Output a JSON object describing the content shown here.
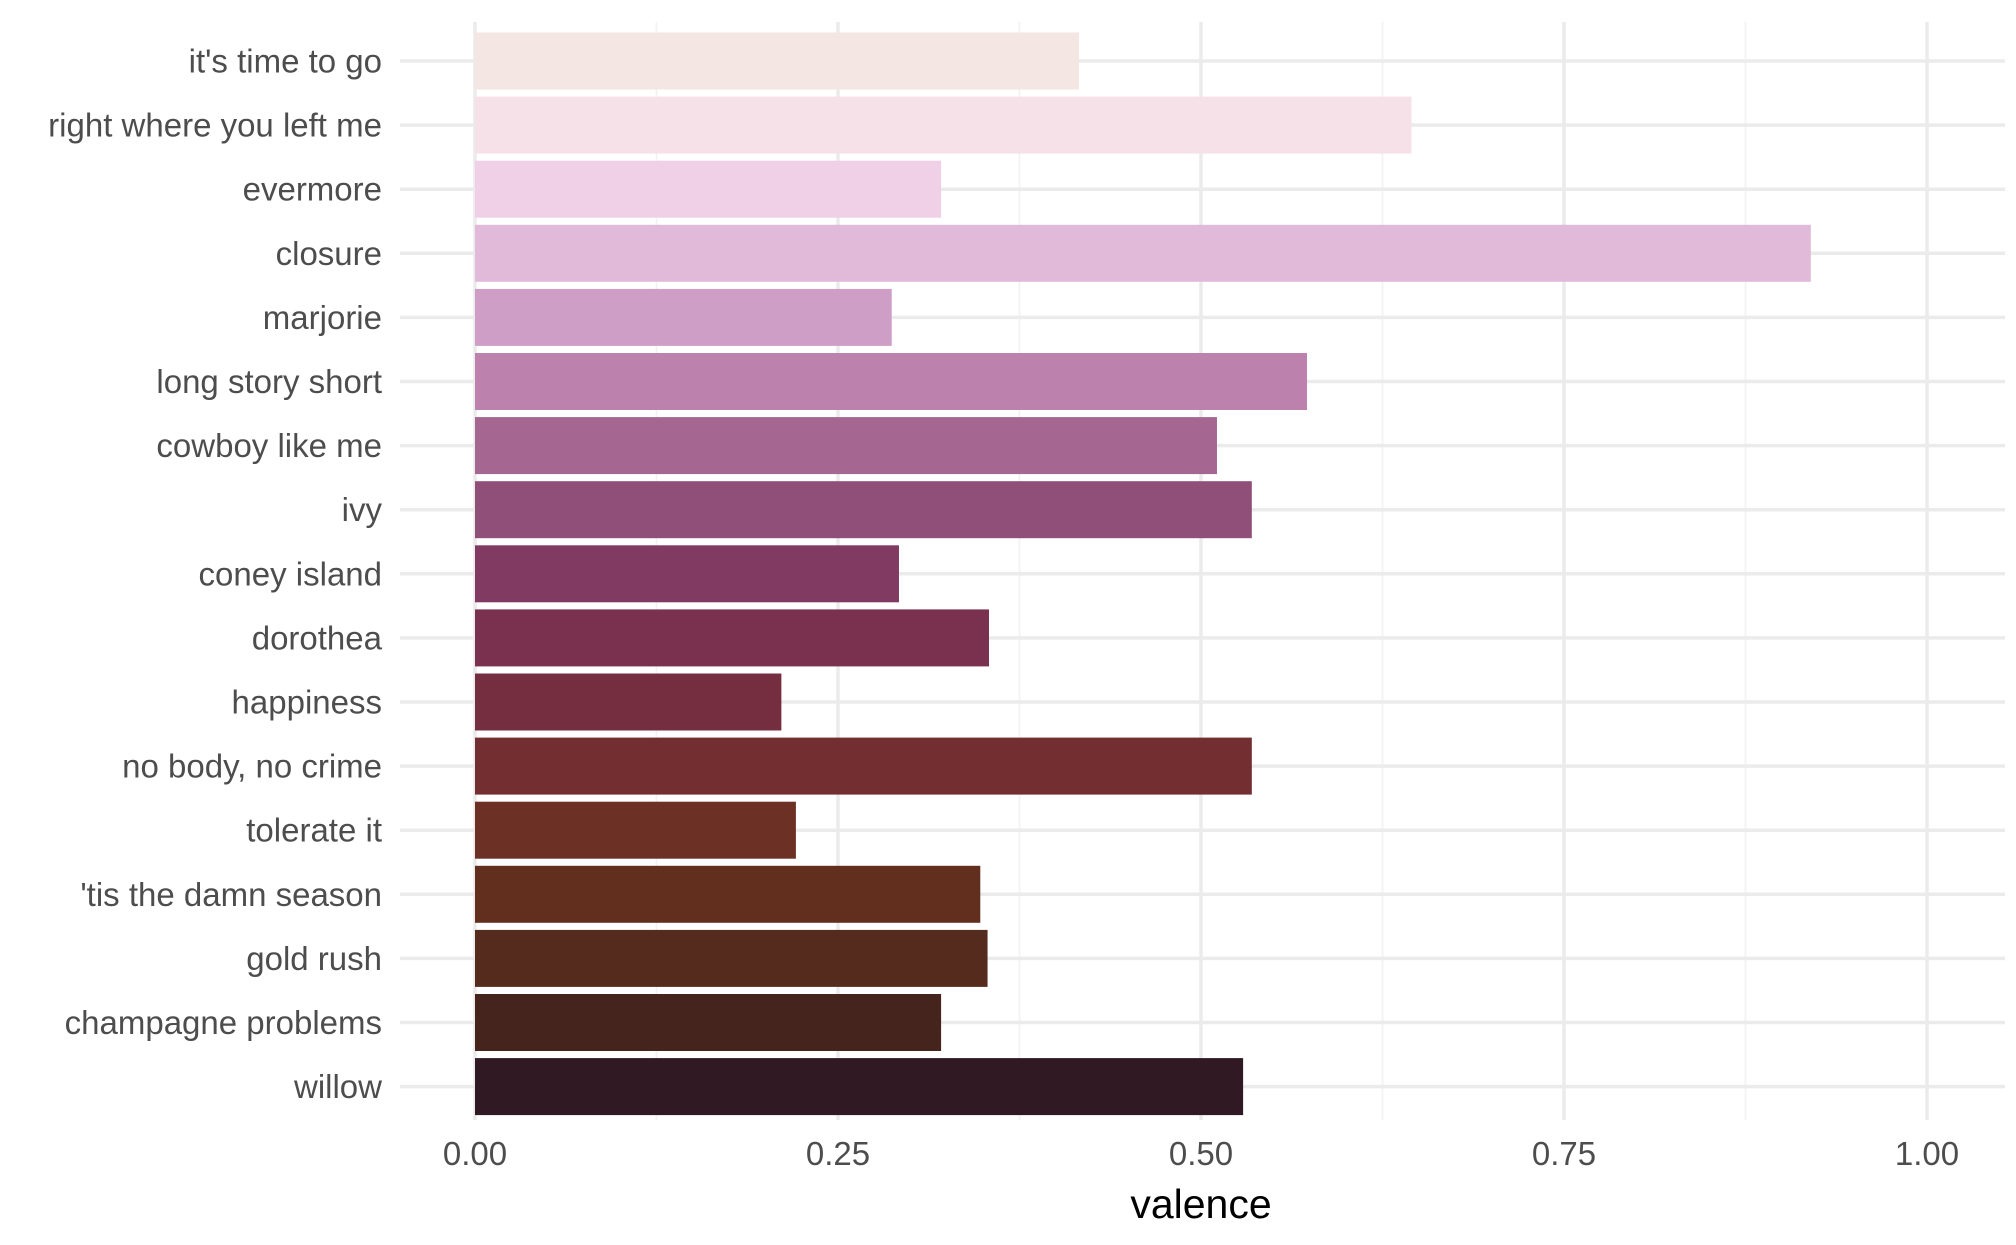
{
  "chart_data": {
    "type": "bar",
    "orientation": "horizontal",
    "xlabel": "valence",
    "ylabel": "",
    "title": "",
    "xlim": [
      0,
      1.0
    ],
    "x_ticks": [
      {
        "value": 0.0,
        "label": "0.00"
      },
      {
        "value": 0.25,
        "label": "0.25"
      },
      {
        "value": 0.5,
        "label": "0.50"
      },
      {
        "value": 0.75,
        "label": "0.75"
      },
      {
        "value": 1.0,
        "label": "1.00"
      }
    ],
    "grid": true,
    "legend": "none",
    "categories": [
      "it's time to go",
      "right where you left me",
      "evermore",
      "closure",
      "marjorie",
      "long story short",
      "cowboy like me",
      "ivy",
      "coney island",
      "dorothea",
      "happiness",
      "no body, no crime",
      "tolerate it",
      "'tis the damn season",
      "gold rush",
      "champagne problems",
      "willow"
    ],
    "values": [
      0.416,
      0.645,
      0.321,
      0.92,
      0.287,
      0.573,
      0.511,
      0.535,
      0.292,
      0.354,
      0.211,
      0.535,
      0.221,
      0.348,
      0.353,
      0.321,
      0.529
    ],
    "colors": [
      "#F3E6E3",
      "#F6E1E9",
      "#F0D0E6",
      "#E1BAD9",
      "#CF9EC6",
      "#BC81AD",
      "#A56692",
      "#8F4F79",
      "#813B63",
      "#7A3150",
      "#752D40",
      "#722E31",
      "#6C3124",
      "#622F1F",
      "#552B1D",
      "#46241E",
      "#301923"
    ]
  }
}
